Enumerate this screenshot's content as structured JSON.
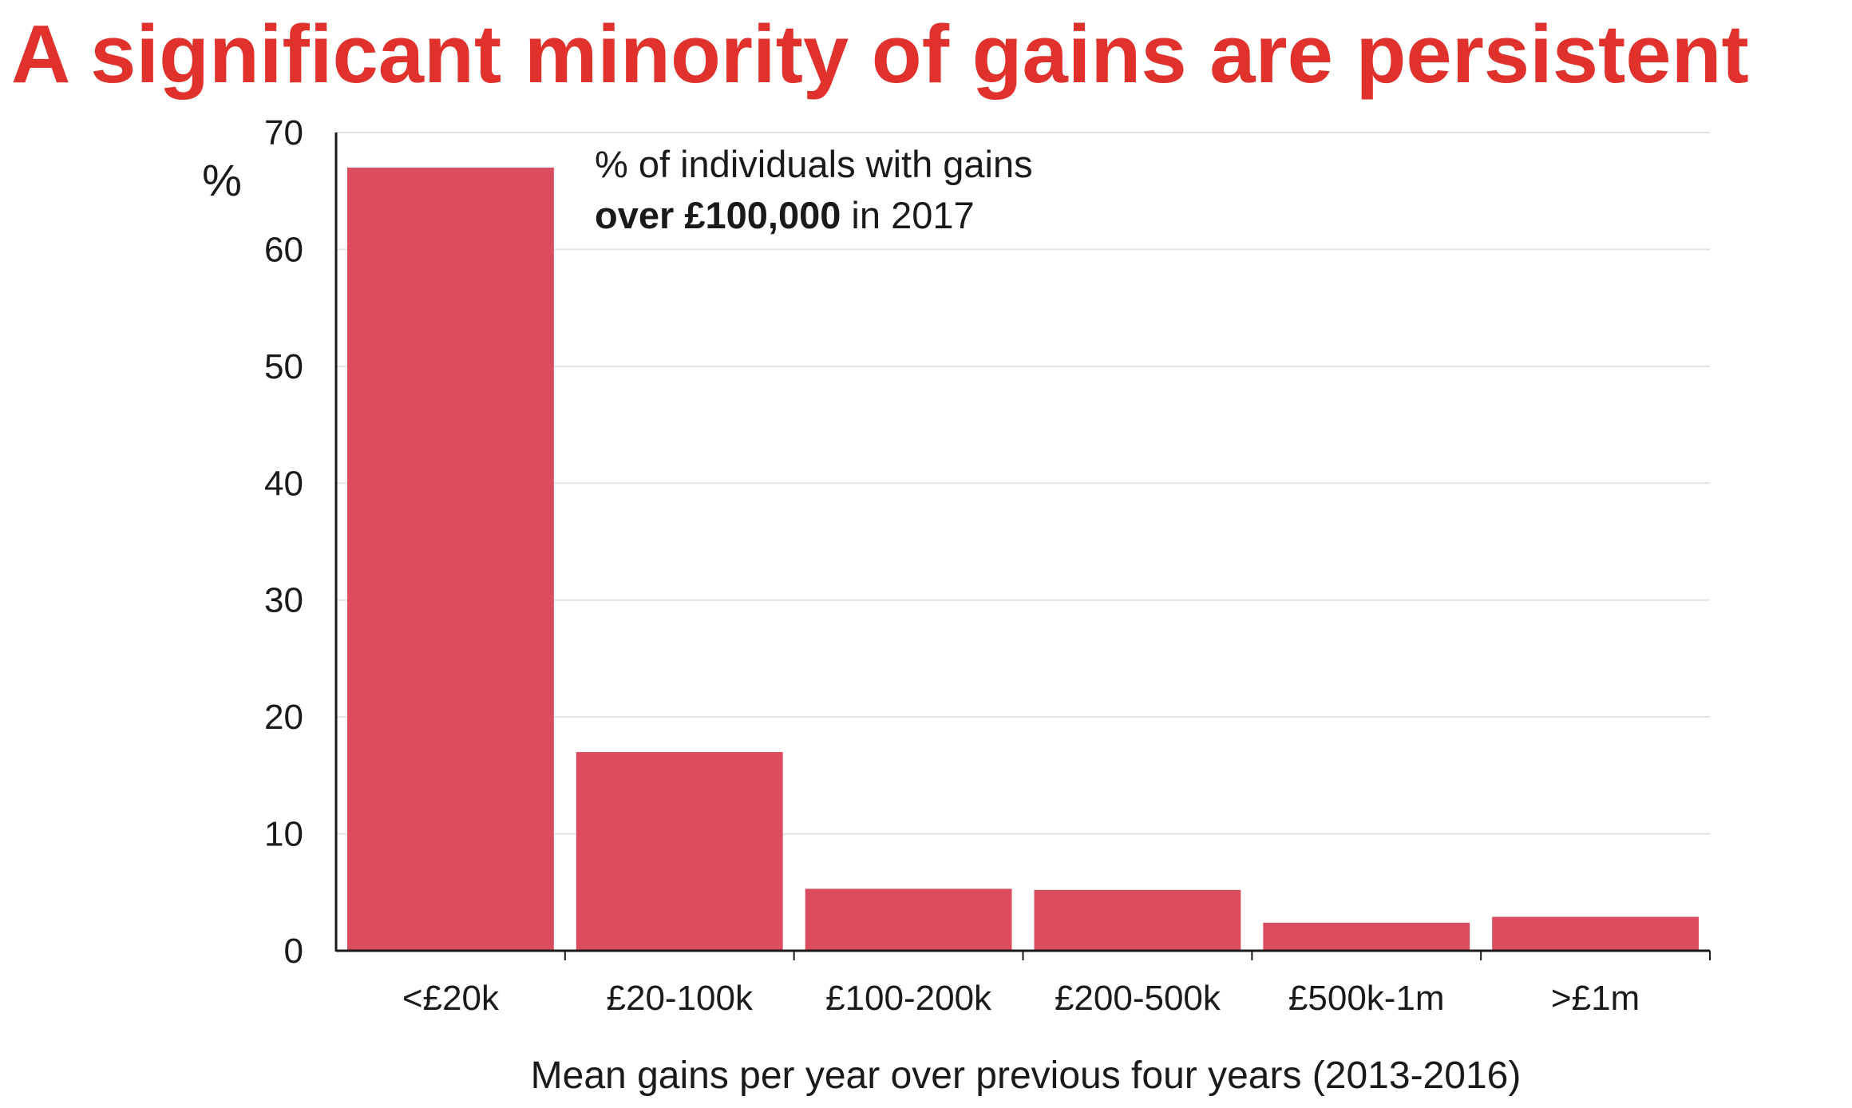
{
  "title": "A significant minority of gains are persistent",
  "colors": {
    "title": "#e1312c",
    "bar": "#dc4c5f",
    "grid": "#e3e3e3",
    "axis": "#1a1a1a"
  },
  "chart_data": {
    "type": "bar",
    "title": "",
    "categories": [
      "<£20k",
      "£20-100k",
      "£100-200k",
      "£200-500k",
      "£500k-1m",
      ">£1m"
    ],
    "values": [
      67,
      17,
      5.3,
      5.2,
      2.4,
      2.9
    ],
    "ylabel": "%",
    "xlabel": "Mean gains per year over previous four years (2013-2016)",
    "ylim": [
      0,
      70
    ],
    "yticks": [
      0,
      10,
      20,
      30,
      40,
      50,
      60,
      70
    ],
    "grid": true,
    "annotation": {
      "line1": "% of individuals with gains",
      "line2_bold": "over £100,000",
      "line2_rest": " in 2017"
    }
  }
}
